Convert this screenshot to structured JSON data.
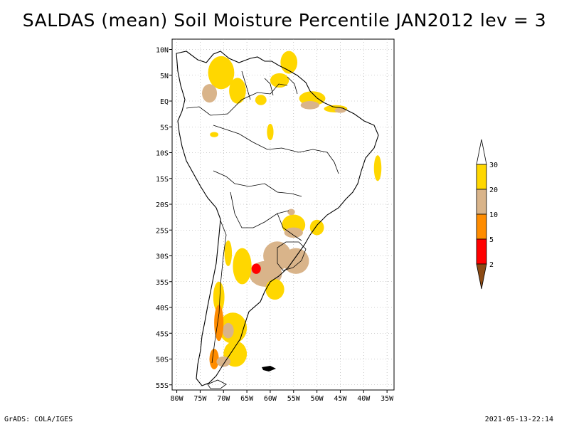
{
  "title": "SALDAS (mean) Soil Moisture Percentile JAN2012 lev = 3",
  "footer": {
    "left": "GrADS: COLA/IGES",
    "right": "2021-05-13-22:14"
  },
  "axes": {
    "lat_labels": [
      "10N",
      "5N",
      "EQ",
      "5S",
      "10S",
      "15S",
      "20S",
      "25S",
      "30S",
      "35S",
      "40S",
      "45S",
      "50S",
      "55S"
    ],
    "lat_values": [
      10,
      5,
      0,
      -5,
      -10,
      -15,
      -20,
      -25,
      -30,
      -35,
      -40,
      -45,
      -50,
      -55
    ],
    "lon_labels": [
      "80W",
      "75W",
      "70W",
      "65W",
      "60W",
      "55W",
      "50W",
      "45W",
      "40W",
      "35W"
    ],
    "lon_values": [
      -80,
      -75,
      -70,
      -65,
      -60,
      -55,
      -50,
      -45,
      -40,
      -35
    ],
    "lon_range": [
      -81,
      -33.5
    ],
    "lat_range": [
      -56,
      12
    ]
  },
  "legend": {
    "labels": [
      "2",
      "5",
      "10",
      "20",
      "30"
    ],
    "colors": [
      "#8c4a14",
      "#ff0000",
      "#ff8c00",
      "#d9b48a",
      "#ffd700"
    ]
  },
  "colors": {
    "land_outline": "#000000",
    "grid": "#a0a0a0",
    "moist_20_30": "#ffd700",
    "moist_10_20": "#d9b48a",
    "moist_5_10": "#ff8c00",
    "moist_2_5": "#ff0000"
  },
  "patches": [
    {
      "lon": -70.5,
      "lat": 5.5,
      "rx": 2.8,
      "ry": 3.2,
      "class": "20-30"
    },
    {
      "lon": -73,
      "lat": 1.5,
      "rx": 1.6,
      "ry": 1.8,
      "class": "10-20"
    },
    {
      "lon": -67,
      "lat": 2.0,
      "rx": 1.8,
      "ry": 2.5,
      "class": "20-30"
    },
    {
      "lon": -56,
      "lat": 7.5,
      "rx": 1.8,
      "ry": 2.2,
      "class": "20-30"
    },
    {
      "lon": -58,
      "lat": 4.0,
      "rx": 2.0,
      "ry": 1.4,
      "class": "20-30"
    },
    {
      "lon": -51,
      "lat": 0.5,
      "rx": 2.8,
      "ry": 1.4,
      "class": "20-30"
    },
    {
      "lon": -51.5,
      "lat": -0.8,
      "rx": 2.0,
      "ry": 0.8,
      "class": "10-20"
    },
    {
      "lon": -46,
      "lat": -1.5,
      "rx": 2.5,
      "ry": 0.7,
      "class": "20-30"
    },
    {
      "lon": -45,
      "lat": -1.8,
      "rx": 1.2,
      "ry": 0.5,
      "class": "10-20"
    },
    {
      "lon": -60,
      "lat": -6.0,
      "rx": 0.7,
      "ry": 1.6,
      "class": "20-30"
    },
    {
      "lon": -72,
      "lat": -6.5,
      "rx": 0.9,
      "ry": 0.5,
      "class": "20-30"
    },
    {
      "lon": -62,
      "lat": 0.2,
      "rx": 1.2,
      "ry": 1.0,
      "class": "20-30"
    },
    {
      "lon": -37,
      "lat": -13.0,
      "rx": 0.8,
      "ry": 2.5,
      "class": "20-30"
    },
    {
      "lon": -55,
      "lat": -24.0,
      "rx": 2.5,
      "ry": 2.0,
      "class": "20-30"
    },
    {
      "lon": -55,
      "lat": -25.5,
      "rx": 2.0,
      "ry": 1.0,
      "class": "10-20"
    },
    {
      "lon": -50,
      "lat": -24.5,
      "rx": 1.5,
      "ry": 1.5,
      "class": "20-30"
    },
    {
      "lon": -58.5,
      "lat": -30.0,
      "rx": 3.0,
      "ry": 2.8,
      "class": "10-20"
    },
    {
      "lon": -54.5,
      "lat": -31.0,
      "rx": 2.8,
      "ry": 2.5,
      "class": "10-20"
    },
    {
      "lon": -61,
      "lat": -33.5,
      "rx": 3.5,
      "ry": 2.5,
      "class": "10-20"
    },
    {
      "lon": -63,
      "lat": -32.5,
      "rx": 1.0,
      "ry": 1.0,
      "class": "2-5"
    },
    {
      "lon": -66,
      "lat": -32.0,
      "rx": 2.0,
      "ry": 3.5,
      "class": "20-30"
    },
    {
      "lon": -59,
      "lat": -36.5,
      "rx": 2.0,
      "ry": 2.0,
      "class": "20-30"
    },
    {
      "lon": -69,
      "lat": -29.5,
      "rx": 0.8,
      "ry": 2.5,
      "class": "20-30"
    },
    {
      "lon": -71,
      "lat": -38.0,
      "rx": 1.2,
      "ry": 3.0,
      "class": "20-30"
    },
    {
      "lon": -68,
      "lat": -44.0,
      "rx": 3.0,
      "ry": 3.0,
      "class": "20-30"
    },
    {
      "lon": -69,
      "lat": -44.5,
      "rx": 1.2,
      "ry": 1.5,
      "class": "10-20"
    },
    {
      "lon": -71,
      "lat": -43.0,
      "rx": 1.0,
      "ry": 3.5,
      "class": "5-10"
    },
    {
      "lon": -67.5,
      "lat": -49.0,
      "rx": 2.5,
      "ry": 2.5,
      "class": "20-30"
    },
    {
      "lon": -72,
      "lat": -50.0,
      "rx": 1.0,
      "ry": 2.0,
      "class": "5-10"
    },
    {
      "lon": -70,
      "lat": -50.5,
      "rx": 1.5,
      "ry": 1.0,
      "class": "10-20"
    },
    {
      "lon": -55.5,
      "lat": -21.5,
      "rx": 0.8,
      "ry": 0.6,
      "class": "10-20"
    }
  ]
}
